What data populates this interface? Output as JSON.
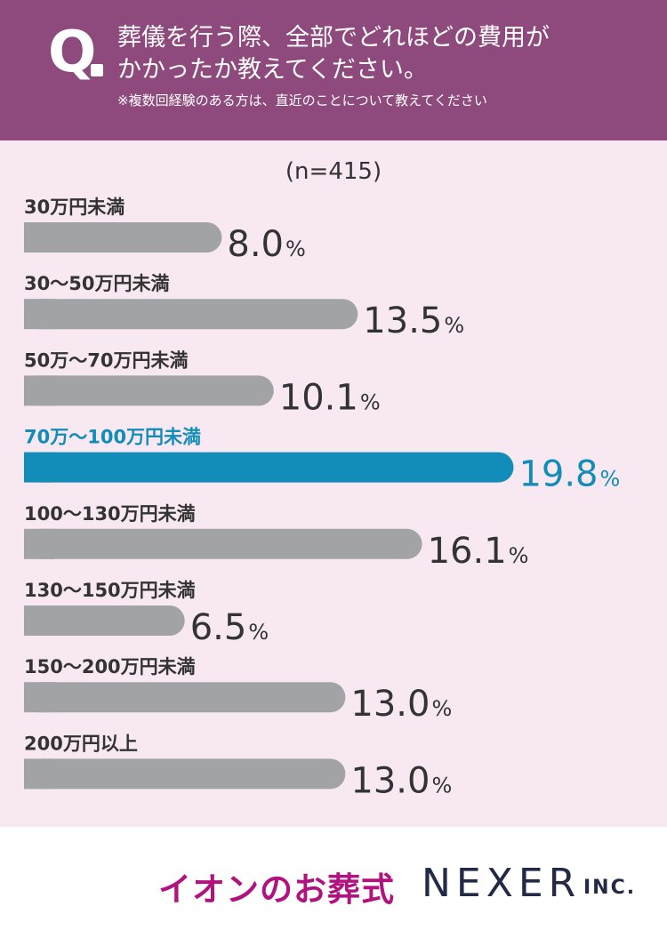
{
  "header": {
    "q_mark": "Q",
    "question_line1": "葬儀を行う際、全部でどれほどの費用が",
    "question_line2": "かかったか教えてください。",
    "note": "※複数回経験のある方は、直近のことについて教えてください"
  },
  "chart_data": {
    "type": "bar",
    "orientation": "horizontal",
    "sample_label": "(n=415)",
    "unit": "%",
    "categories": [
      "30万円未満",
      "30～50万円未満",
      "50万～70万円未満",
      "70万～100万円未満",
      "100～130万円未満",
      "130～150万円未満",
      "150～200万円未満",
      "200万円以上"
    ],
    "values": [
      8.0,
      13.5,
      10.1,
      19.8,
      16.1,
      6.5,
      13.0,
      13.0
    ],
    "value_labels": [
      "8.0",
      "13.5",
      "10.1",
      "19.8",
      "16.1",
      "6.5",
      "13.0",
      "13.0"
    ],
    "highlight_index": 3,
    "colors": {
      "bar": "#a2a3a7",
      "highlight": "#128cb8",
      "text": "#333333",
      "background": "#f7e8f2"
    }
  },
  "footer": {
    "logo_left": "イオンのお葬式",
    "logo_right": "NEXER",
    "logo_right_suffix": "INC."
  }
}
